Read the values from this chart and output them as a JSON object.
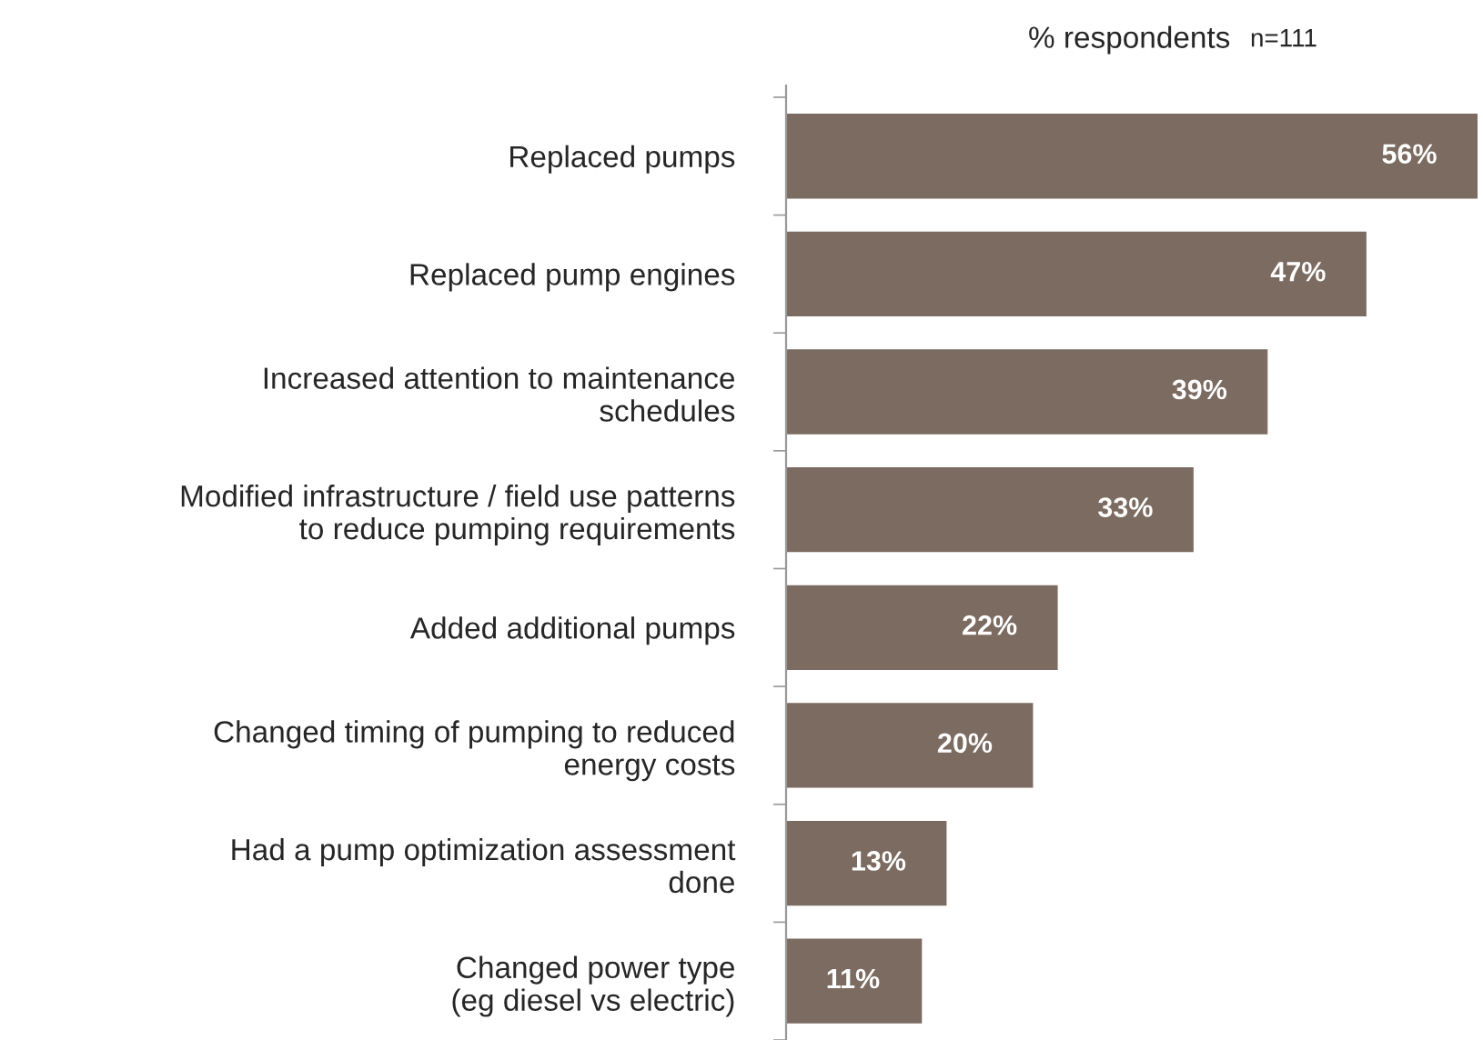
{
  "chart_data": {
    "type": "bar",
    "orientation": "horizontal",
    "title": "% respondents",
    "subtitle": "n=111",
    "categories": [
      "Replaced pumps",
      "Replaced pump engines",
      "Increased attention to maintenance\nschedules",
      "Modified infrastructure / field use patterns\nto reduce pumping requirements",
      "Added additional pumps",
      "Changed timing of pumping to reduced\nenergy costs",
      "Had a pump optimization assessment\ndone",
      "Changed power type\n(eg diesel vs electric)"
    ],
    "values": [
      56,
      47,
      39,
      33,
      22,
      20,
      13,
      11
    ],
    "value_labels": [
      "56%",
      "47%",
      "39%",
      "33%",
      "22%",
      "20%",
      "13%",
      "11%"
    ],
    "color": "#7b6b61",
    "grid": false,
    "legend": false
  }
}
